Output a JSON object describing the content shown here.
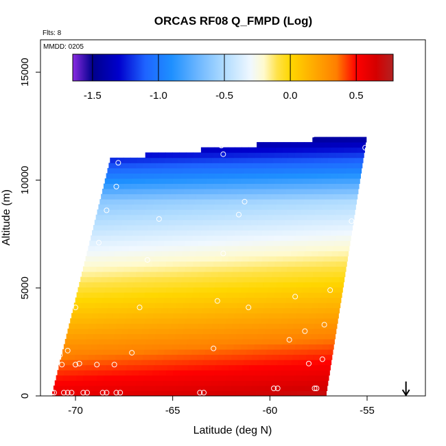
{
  "chart_data": {
    "type": "heatmap",
    "title": "ORCAS RF08 Q_FMPD (Log)",
    "annotations": {
      "flts": "Flts: 8",
      "mmdd": "MMDD: 0205"
    },
    "xlabel": "Latitude (deg N)",
    "ylabel": "Altitude (m)",
    "xlim": [
      -71.8,
      -52.0
    ],
    "ylim": [
      0,
      16500
    ],
    "x_ticks": [
      -70,
      -65,
      -60,
      -55
    ],
    "x_tick_labels": [
      "-70",
      "-65",
      "-60",
      "-55"
    ],
    "y_ticks": [
      0,
      5000,
      10000,
      15000
    ],
    "y_tick_labels": [
      "0",
      "5000",
      "10000",
      "15000"
    ],
    "colorbar": {
      "ticks": [
        -1.5,
        -1.0,
        -0.5,
        0.0,
        0.5
      ],
      "tick_labels": [
        "-1.5",
        "-1.0",
        "-0.5",
        "0.0",
        "0.5"
      ],
      "min": -1.65,
      "max": 0.78,
      "stops": [
        [
          -1.65,
          "#8a2be2"
        ],
        [
          -1.5,
          "#00008b"
        ],
        [
          -1.3,
          "#0000cd"
        ],
        [
          -1.1,
          "#1e64ff"
        ],
        [
          -0.9,
          "#1e90ff"
        ],
        [
          -0.7,
          "#6cb6ff"
        ],
        [
          -0.5,
          "#b0dcff"
        ],
        [
          -0.3,
          "#f0f8ff"
        ],
        [
          -0.2,
          "#fffacd"
        ],
        [
          -0.1,
          "#ffe24a"
        ],
        [
          0.0,
          "#ffd700"
        ],
        [
          0.2,
          "#ffa500"
        ],
        [
          0.35,
          "#ff7f00"
        ],
        [
          0.5,
          "#ff0000"
        ],
        [
          0.65,
          "#d50000"
        ],
        [
          0.78,
          "#b22222"
        ]
      ]
    },
    "grid": false,
    "field": {
      "description_model": "value decreases with altitude; boundary rises with latitude",
      "bottom_left_lat": -71.2,
      "bottom_right_lat": -57.1,
      "top_left_lat": -68.2,
      "top_right_lat": -55.0,
      "top_alt_left": 10900,
      "top_alt_right": 12000,
      "bottom_alt": 0
    },
    "points": [
      [
        -71.2,
        150
      ],
      [
        -71.1,
        150
      ],
      [
        -70.6,
        150
      ],
      [
        -70.4,
        150
      ],
      [
        -70.2,
        150
      ],
      [
        -69.6,
        150
      ],
      [
        -69.4,
        150
      ],
      [
        -68.6,
        150
      ],
      [
        -68.4,
        150
      ],
      [
        -67.9,
        150
      ],
      [
        -67.7,
        150
      ],
      [
        -63.6,
        150
      ],
      [
        -63.4,
        150
      ],
      [
        -59.8,
        350
      ],
      [
        -59.6,
        350
      ],
      [
        -57.7,
        350
      ],
      [
        -57.6,
        350
      ],
      [
        -71.5,
        1400
      ],
      [
        -70.7,
        1450
      ],
      [
        -70.0,
        1450
      ],
      [
        -69.8,
        1500
      ],
      [
        -68.9,
        1450
      ],
      [
        -68.0,
        1450
      ],
      [
        -70.8,
        1900
      ],
      [
        -70.4,
        2100
      ],
      [
        -67.1,
        2000
      ],
      [
        -62.9,
        2200
      ],
      [
        -58.0,
        1500
      ],
      [
        -57.3,
        1700
      ],
      [
        -59.0,
        2600
      ],
      [
        -58.2,
        3000
      ],
      [
        -57.2,
        3300
      ],
      [
        -70.0,
        4100
      ],
      [
        -70.3,
        4100
      ],
      [
        -66.7,
        4100
      ],
      [
        -62.7,
        4400
      ],
      [
        -61.1,
        4100
      ],
      [
        -58.7,
        4600
      ],
      [
        -56.9,
        4900
      ],
      [
        -66.3,
        6300
      ],
      [
        -62.4,
        6600
      ],
      [
        -68.8,
        7100
      ],
      [
        -61.6,
        8400
      ],
      [
        -61.3,
        9000
      ],
      [
        -65.7,
        8200
      ],
      [
        -68.4,
        8600
      ],
      [
        -55.8,
        8100
      ],
      [
        -67.9,
        9700
      ],
      [
        -67.8,
        10800
      ],
      [
        -62.4,
        11200
      ],
      [
        -62.5,
        11600
      ],
      [
        -57.8,
        12100
      ],
      [
        -57.8,
        12200
      ],
      [
        -55.1,
        11500
      ]
    ],
    "indicator": {
      "label": "",
      "lat": -53.0,
      "shape": "arrow-down"
    }
  }
}
